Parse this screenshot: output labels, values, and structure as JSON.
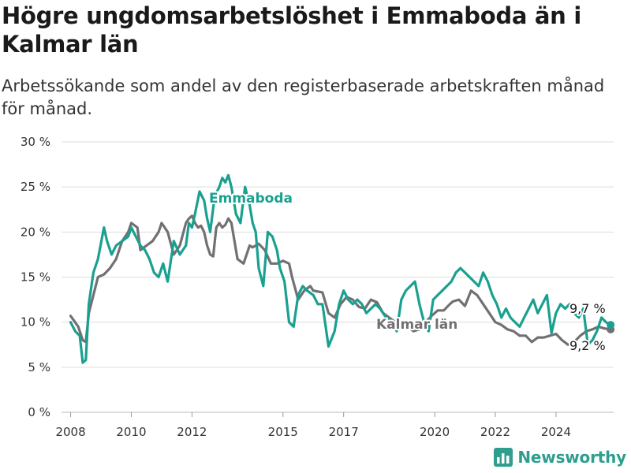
{
  "header": {
    "title": "Högre ungdomsarbetslöshet i Emmaboda än i Kalmar län",
    "subtitle": "Arbetssökande som andel av den registerbaserade arbetskraften månad för månad."
  },
  "brand": {
    "name": "Newsworthy",
    "icon": "bar-chart-logo-icon",
    "color": "#2f9e8f"
  },
  "chart_data": {
    "type": "line",
    "title": "Högre ungdomsarbetslöshet i Emmaboda än i Kalmar län",
    "subtitle": "Arbetssökande som andel av den registerbaserade arbetskraften månad för månad.",
    "xlabel": "",
    "ylabel": "",
    "xlim": [
      2007.7,
      2025.9
    ],
    "ylim": [
      0,
      30
    ],
    "x_ticks": [
      {
        "value": 2008,
        "label": "2008"
      },
      {
        "value": 2010,
        "label": "2010"
      },
      {
        "value": 2012,
        "label": "2012"
      },
      {
        "value": 2015,
        "label": "2015"
      },
      {
        "value": 2017,
        "label": "2017"
      },
      {
        "value": 2020,
        "label": "2020"
      },
      {
        "value": 2022,
        "label": "2022"
      },
      {
        "value": 2024,
        "label": "2024"
      }
    ],
    "y_ticks": [
      {
        "value": 0,
        "label": "0 %"
      },
      {
        "value": 5,
        "label": "5 %"
      },
      {
        "value": 10,
        "label": "10 %"
      },
      {
        "value": 15,
        "label": "15 %"
      },
      {
        "value": 20,
        "label": "20 %"
      },
      {
        "value": 25,
        "label": "25 %"
      },
      {
        "value": 30,
        "label": "30 %"
      }
    ],
    "grid": true,
    "legend": "none (direct labels on lines)",
    "series": [
      {
        "name": "Kalmar län",
        "color": "#737073",
        "end_label": "9,2 %",
        "x": [
          2008.0,
          2008.25,
          2008.4,
          2008.5,
          2008.6,
          2008.75,
          2008.9,
          2009.1,
          2009.3,
          2009.5,
          2009.7,
          2009.9,
          2010.0,
          2010.2,
          2010.3,
          2010.5,
          2010.7,
          2010.9,
          2011.0,
          2011.2,
          2011.4,
          2011.6,
          2011.8,
          2011.9,
          2012.0,
          2012.1,
          2012.2,
          2012.3,
          2012.4,
          2012.5,
          2012.6,
          2012.7,
          2012.8,
          2012.9,
          2013.0,
          2013.1,
          2013.2,
          2013.3,
          2013.5,
          2013.7,
          2013.9,
          2014.0,
          2014.2,
          2014.4,
          2014.6,
          2014.8,
          2015.0,
          2015.2,
          2015.3,
          2015.5,
          2015.7,
          2015.9,
          2016.0,
          2016.3,
          2016.5,
          2016.7,
          2016.9,
          2017.1,
          2017.3,
          2017.5,
          2017.7,
          2017.9,
          2018.1,
          2018.3,
          2018.5,
          2018.7,
          2018.9,
          2019.1,
          2019.3,
          2019.5,
          2019.7,
          2019.9,
          2020.1,
          2020.3,
          2020.5,
          2020.6,
          2020.8,
          2021.0,
          2021.2,
          2021.4,
          2021.6,
          2021.8,
          2022.0,
          2022.2,
          2022.4,
          2022.6,
          2022.8,
          2023.0,
          2023.2,
          2023.4,
          2023.6,
          2023.8,
          2024.0,
          2024.2,
          2024.4,
          2024.6,
          2024.8,
          2025.0,
          2025.2,
          2025.4,
          2025.6,
          2025.8
        ],
        "values": [
          10.7,
          9.5,
          8.0,
          7.8,
          11.0,
          13.0,
          15.0,
          15.3,
          16.0,
          17.0,
          19.0,
          20.0,
          21.0,
          20.5,
          18.0,
          18.5,
          19.0,
          20.0,
          21.0,
          20.0,
          17.5,
          18.5,
          21.0,
          21.5,
          21.8,
          21.0,
          20.5,
          20.7,
          20.0,
          18.5,
          17.5,
          17.3,
          20.5,
          21.0,
          20.5,
          20.8,
          21.5,
          21.0,
          17.0,
          16.5,
          18.5,
          18.3,
          18.7,
          18.0,
          16.5,
          16.5,
          16.8,
          16.5,
          15.0,
          12.5,
          13.5,
          14.0,
          13.5,
          13.3,
          11.0,
          10.5,
          12.0,
          12.8,
          12.5,
          11.7,
          11.5,
          12.5,
          12.2,
          11.0,
          10.5,
          10.0,
          9.5,
          9.5,
          9.0,
          9.2,
          10.0,
          10.7,
          11.3,
          11.3,
          12.0,
          12.3,
          12.5,
          11.8,
          13.5,
          13.0,
          12.0,
          11.0,
          10.0,
          9.7,
          9.2,
          9.0,
          8.5,
          8.5,
          7.8,
          8.3,
          8.3,
          8.5,
          8.7,
          8.0,
          7.5,
          7.8,
          8.5,
          9.0,
          9.2,
          9.5,
          9.3,
          9.2
        ]
      },
      {
        "name": "Emmaboda",
        "color": "#1aa090",
        "end_label": "9,7 %",
        "x": [
          2008.0,
          2008.15,
          2008.3,
          2008.4,
          2008.5,
          2008.6,
          2008.75,
          2008.9,
          2009.1,
          2009.2,
          2009.35,
          2009.5,
          2009.7,
          2009.9,
          2010.0,
          2010.15,
          2010.3,
          2010.45,
          2010.6,
          2010.75,
          2010.9,
          2011.05,
          2011.2,
          2011.4,
          2011.6,
          2011.8,
          2011.9,
          2012.0,
          2012.1,
          2012.25,
          2012.4,
          2012.5,
          2012.6,
          2012.75,
          2012.9,
          2013.0,
          2013.1,
          2013.2,
          2013.3,
          2013.45,
          2013.6,
          2013.75,
          2013.9,
          2014.0,
          2014.1,
          2014.2,
          2014.35,
          2014.5,
          2014.65,
          2014.8,
          2014.9,
          2015.05,
          2015.2,
          2015.35,
          2015.5,
          2015.65,
          2015.8,
          2016.0,
          2016.15,
          2016.3,
          2016.5,
          2016.7,
          2016.85,
          2017.0,
          2017.15,
          2017.3,
          2017.45,
          2017.6,
          2017.75,
          2017.9,
          2018.05,
          2018.2,
          2018.4,
          2018.6,
          2018.75,
          2018.9,
          2019.05,
          2019.2,
          2019.35,
          2019.5,
          2019.65,
          2019.8,
          2019.95,
          2020.1,
          2020.25,
          2020.4,
          2020.55,
          2020.7,
          2020.85,
          2021.0,
          2021.15,
          2021.3,
          2021.45,
          2021.6,
          2021.75,
          2021.9,
          2022.05,
          2022.2,
          2022.35,
          2022.5,
          2022.65,
          2022.8,
          2022.95,
          2023.1,
          2023.25,
          2023.4,
          2023.55,
          2023.7,
          2023.85,
          2024.0,
          2024.15,
          2024.3,
          2024.45,
          2024.6,
          2024.75,
          2024.9,
          2025.05,
          2025.2,
          2025.35,
          2025.5,
          2025.65,
          2025.8
        ],
        "values": [
          10.0,
          9.0,
          8.5,
          5.5,
          5.8,
          12.0,
          15.5,
          17.0,
          20.5,
          19.0,
          17.5,
          18.5,
          19.0,
          19.5,
          20.5,
          19.5,
          18.5,
          18.0,
          17.0,
          15.5,
          15.0,
          16.5,
          14.5,
          19.0,
          17.5,
          18.5,
          21.0,
          20.5,
          22.0,
          24.5,
          23.5,
          21.5,
          20.0,
          24.0,
          25.0,
          26.0,
          25.5,
          26.3,
          25.0,
          22.0,
          21.0,
          25.0,
          23.0,
          21.0,
          20.0,
          16.0,
          14.0,
          20.0,
          19.5,
          18.0,
          16.0,
          14.5,
          10.0,
          9.5,
          13.0,
          14.0,
          13.5,
          13.0,
          12.0,
          12.0,
          7.3,
          9.0,
          12.0,
          13.5,
          12.5,
          12.0,
          12.5,
          12.0,
          11.0,
          11.5,
          12.0,
          11.5,
          10.5,
          10.0,
          9.0,
          12.5,
          13.5,
          14.0,
          14.5,
          12.0,
          10.0,
          9.0,
          12.5,
          13.0,
          13.5,
          14.0,
          14.5,
          15.5,
          16.0,
          15.5,
          15.0,
          14.5,
          14.0,
          15.5,
          14.5,
          13.0,
          12.0,
          10.5,
          11.5,
          10.5,
          10.0,
          9.5,
          10.5,
          11.5,
          12.5,
          11.0,
          12.0,
          13.0,
          8.8,
          11.0,
          12.0,
          11.5,
          12.0,
          11.0,
          10.5,
          11.5,
          7.5,
          8.0,
          9.0,
          10.5,
          10.0,
          9.7
        ]
      }
    ]
  }
}
